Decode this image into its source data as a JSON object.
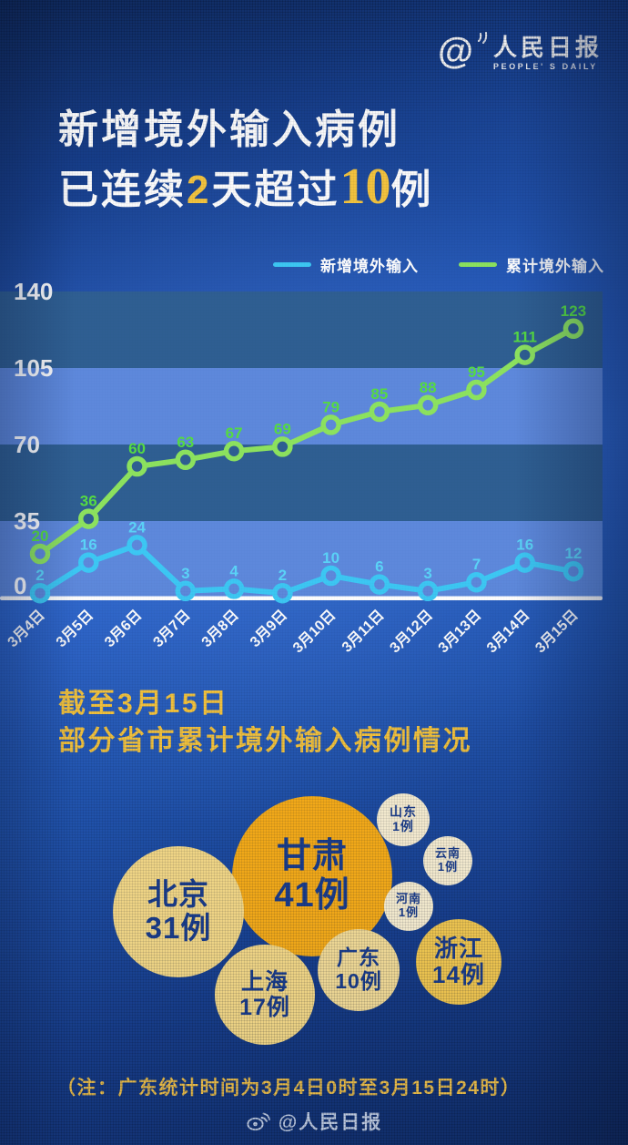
{
  "brand": {
    "at": "@",
    "name": "人民日报",
    "tagline": "PEOPLE' S DAILY"
  },
  "title": {
    "line1": "新增境外输入病例",
    "line2_p1": "已连续",
    "line2_n1": "2",
    "line2_p2": "天超过",
    "line2_n2": "10",
    "line2_p3": "例"
  },
  "chart_data": {
    "type": "line",
    "categories": [
      "3月4日",
      "3月5日",
      "3月6日",
      "3月7日",
      "3月8日",
      "3月9日",
      "3月10日",
      "3月11日",
      "3月12日",
      "3月13日",
      "3月14日",
      "3月15日"
    ],
    "series": [
      {
        "name": "新增境外输入",
        "color": "#3DC8F4",
        "label_color": "#5BD4F8",
        "values": [
          2,
          16,
          24,
          3,
          4,
          2,
          10,
          6,
          3,
          7,
          16,
          12
        ]
      },
      {
        "name": "累计境外输入",
        "color": "#8DE35F",
        "label_color": "#56DC43",
        "values": [
          20,
          36,
          60,
          63,
          67,
          69,
          79,
          85,
          88,
          95,
          111,
          123
        ]
      }
    ],
    "yticks": [
      0,
      35,
      70,
      105,
      140
    ],
    "ylim": [
      0,
      140
    ],
    "grid": "alternating-bands",
    "legend_position": "top-right",
    "band_light": "#5E89DC",
    "band_dark": "#2F5F92",
    "axis_color": "#FFFFFF",
    "tick_color": "#FFFFFF"
  },
  "section2": {
    "title_line1": "截至3月15日",
    "title_line2": "部分省市累计境外输入病例情况",
    "bubbles": [
      {
        "id": "gansu",
        "name": "甘肃",
        "cases": "41例",
        "fill": "#FBAF19",
        "text_color": "#1C3F8F"
      },
      {
        "id": "beijing",
        "name": "北京",
        "cases": "31例",
        "fill": "#F9DD8A",
        "text_color": "#1C3F8F"
      },
      {
        "id": "shanghai",
        "name": "上海",
        "cases": "17例",
        "fill": "#F9DD8A",
        "text_color": "#1C3F8F"
      },
      {
        "id": "zhejiang",
        "name": "浙江",
        "cases": "14例",
        "fill": "#F6CB52",
        "text_color": "#1C3F8F"
      },
      {
        "id": "guangdong",
        "name": "广东",
        "cases": "10例",
        "fill": "#F8E09A",
        "text_color": "#1C3F8F"
      },
      {
        "id": "shandong",
        "name": "山东",
        "cases": "1例",
        "fill": "#FCF2D5",
        "text_color": "#1C3F8F"
      },
      {
        "id": "yunnan",
        "name": "云南",
        "cases": "1例",
        "fill": "#FCF2D5",
        "text_color": "#1C3F8F"
      },
      {
        "id": "henan",
        "name": "河南",
        "cases": "1例",
        "fill": "#FCF2D5",
        "text_color": "#1C3F8F"
      }
    ]
  },
  "footnote": "（注：广东统计时间为3月4日0时至3月15日24时）",
  "footer": {
    "handle": "@人民日报"
  }
}
